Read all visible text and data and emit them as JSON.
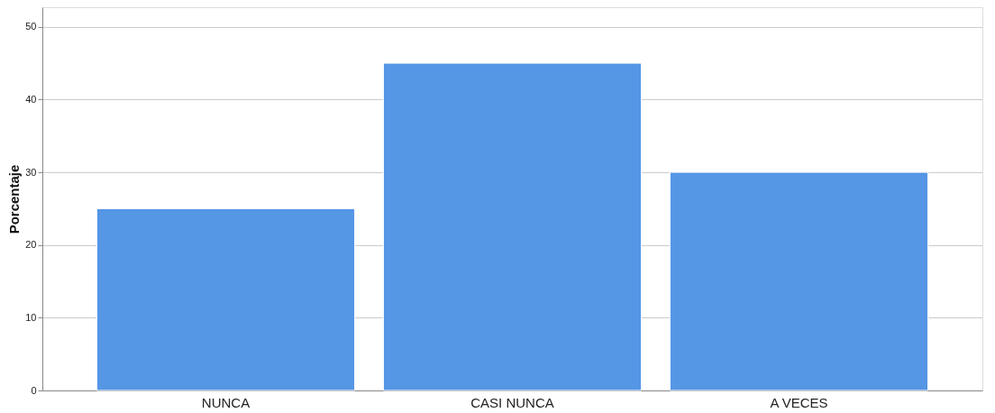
{
  "chart_data": {
    "type": "bar",
    "ylabel": "Porcentaje",
    "categories": [
      "NUNCA",
      "CASI NUNCA",
      "A VECES"
    ],
    "values": [
      25,
      45,
      30
    ],
    "color": "#5596e5",
    "ylim": [
      0,
      52.7
    ],
    "yticks": [
      0,
      10,
      20,
      30,
      40,
      50
    ],
    "grid": "y"
  }
}
